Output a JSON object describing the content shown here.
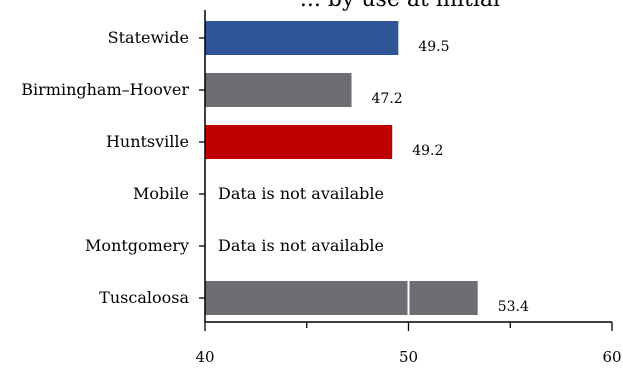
{
  "chart_data": {
    "type": "bar",
    "orientation": "horizontal",
    "title": "... by use at initial",
    "categories": [
      "Statewide",
      "Birmingham–Hoover",
      "Huntsville",
      "Mobile",
      "Montgomery",
      "Tuscaloosa"
    ],
    "values": [
      49.5,
      47.2,
      49.2,
      null,
      null,
      53.4
    ],
    "value_labels": [
      "49.5",
      "47.2",
      "49.2",
      "",
      "",
      "53.4"
    ],
    "missing_label": "Data is not available",
    "colors": [
      "#2f5597",
      "#6d6e71",
      "#c00000",
      "#6d6e71",
      "#6d6e71",
      "#6d6e71"
    ],
    "xlim": [
      40,
      60
    ],
    "xticks": [
      40,
      50,
      60
    ],
    "reference_line": 50,
    "grid": false
  }
}
